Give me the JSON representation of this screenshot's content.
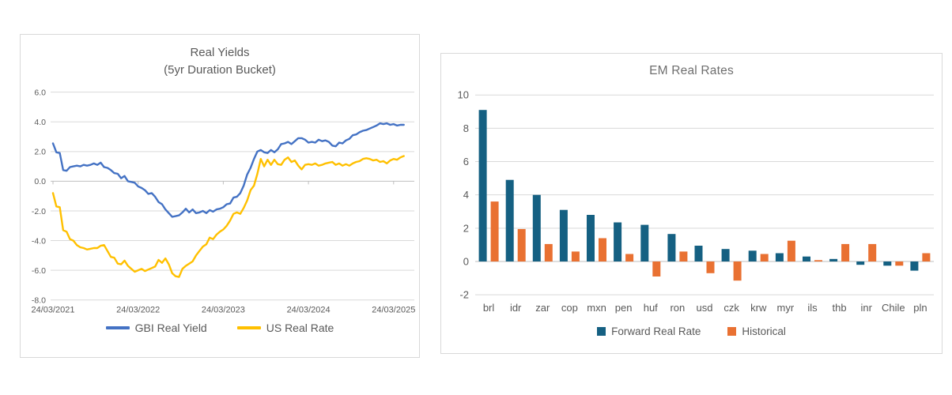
{
  "chart_data": [
    {
      "type": "line",
      "title_lines": [
        "Real Yields",
        "(5yr Duration Bucket)"
      ],
      "xlabel": "",
      "ylabel": "",
      "ylim": [
        -8,
        6
      ],
      "y_ticks": [
        6,
        4,
        2,
        0,
        -2,
        -4,
        -6,
        -8
      ],
      "y_tick_labels": [
        "6.0",
        "4.0",
        "2.0",
        "0.0",
        "-2.0",
        "-4.0",
        "-6.0",
        "-8.0"
      ],
      "x_tick_labels": [
        "24/03/2021",
        "24/03/2022",
        "24/03/2023",
        "24/03/2024",
        "24/03/2025"
      ],
      "x_tick_positions_years": [
        0,
        1,
        2,
        3,
        4
      ],
      "x_range_years": [
        0,
        4.24
      ],
      "grid": true,
      "legend_position": "bottom",
      "axis_color": "#BFBFBF",
      "grid_color": "#D9D9D9",
      "series": [
        {
          "name": "GBI Real Yield",
          "color": "#4472C4",
          "t0": 0,
          "dt": 0.04,
          "values": [
            2.55,
            1.95,
            1.9,
            0.75,
            0.7,
            0.95,
            1.0,
            1.05,
            1.0,
            1.1,
            1.05,
            1.1,
            1.2,
            1.1,
            1.25,
            0.95,
            0.9,
            0.75,
            0.55,
            0.5,
            0.2,
            0.35,
            0.0,
            -0.05,
            -0.1,
            -0.35,
            -0.45,
            -0.6,
            -0.85,
            -0.8,
            -1.05,
            -1.4,
            -1.55,
            -1.9,
            -2.15,
            -2.4,
            -2.35,
            -2.3,
            -2.1,
            -1.85,
            -2.1,
            -1.9,
            -2.15,
            -2.1,
            -2.0,
            -2.15,
            -1.95,
            -2.05,
            -1.9,
            -1.85,
            -1.75,
            -1.55,
            -1.5,
            -1.1,
            -1.05,
            -0.8,
            -0.3,
            0.45,
            0.9,
            1.5,
            2.0,
            2.1,
            1.95,
            1.9,
            2.1,
            1.95,
            2.15,
            2.5,
            2.55,
            2.65,
            2.5,
            2.7,
            2.9,
            2.9,
            2.8,
            2.6,
            2.65,
            2.6,
            2.8,
            2.7,
            2.75,
            2.65,
            2.4,
            2.35,
            2.6,
            2.55,
            2.75,
            2.85,
            3.1,
            3.15,
            3.3,
            3.4,
            3.45,
            3.55,
            3.65,
            3.75,
            3.9,
            3.85,
            3.9,
            3.8,
            3.85,
            3.75,
            3.8,
            3.8
          ]
        },
        {
          "name": "US Real Rate",
          "color": "#FFC000",
          "t0": 0,
          "dt": 0.04,
          "values": [
            -0.8,
            -1.7,
            -1.75,
            -3.3,
            -3.4,
            -3.9,
            -4.0,
            -4.3,
            -4.45,
            -4.5,
            -4.6,
            -4.55,
            -4.5,
            -4.5,
            -4.35,
            -4.3,
            -4.7,
            -5.1,
            -5.15,
            -5.55,
            -5.6,
            -5.35,
            -5.7,
            -5.9,
            -6.1,
            -6.0,
            -5.9,
            -6.05,
            -5.95,
            -5.85,
            -5.75,
            -5.3,
            -5.5,
            -5.2,
            -5.6,
            -6.2,
            -6.4,
            -6.45,
            -5.9,
            -5.7,
            -5.55,
            -5.4,
            -5.0,
            -4.7,
            -4.4,
            -4.25,
            -3.8,
            -3.9,
            -3.6,
            -3.4,
            -3.25,
            -3.0,
            -2.65,
            -2.2,
            -2.1,
            -2.2,
            -1.8,
            -1.3,
            -0.6,
            -0.3,
            0.5,
            1.5,
            1.0,
            1.45,
            1.1,
            1.45,
            1.15,
            1.1,
            1.45,
            1.6,
            1.3,
            1.4,
            1.05,
            0.8,
            1.1,
            1.15,
            1.1,
            1.2,
            1.05,
            1.1,
            1.2,
            1.25,
            1.3,
            1.1,
            1.2,
            1.05,
            1.15,
            1.05,
            1.2,
            1.3,
            1.35,
            1.5,
            1.55,
            1.5,
            1.4,
            1.45,
            1.3,
            1.35,
            1.2,
            1.4,
            1.5,
            1.45,
            1.6,
            1.7
          ]
        }
      ]
    },
    {
      "type": "bar",
      "title": "EM Real Rates",
      "xlabel": "",
      "ylabel": "",
      "ylim": [
        -2,
        10
      ],
      "y_ticks": [
        10,
        8,
        6,
        4,
        2,
        0,
        -2
      ],
      "y_tick_labels": [
        "10",
        "8",
        "6",
        "4",
        "2",
        "0",
        "-2"
      ],
      "categories": [
        "brl",
        "idr",
        "zar",
        "cop",
        "mxn",
        "pen",
        "huf",
        "ron",
        "usd",
        "czk",
        "krw",
        "myr",
        "ils",
        "thb",
        "inr",
        "Chile",
        "pln"
      ],
      "grid": true,
      "legend_position": "bottom",
      "axis_color": "#BFBFBF",
      "grid_color": "#D9D9D9",
      "series": [
        {
          "name": "Forward Real Rate",
          "color": "#156082",
          "values": [
            9.1,
            4.9,
            4.0,
            3.1,
            2.8,
            2.35,
            2.2,
            1.65,
            0.95,
            0.75,
            0.65,
            0.5,
            0.3,
            0.15,
            -0.2,
            -0.25,
            -0.55
          ]
        },
        {
          "name": "Historical",
          "color": "#E97132",
          "values": [
            3.6,
            1.95,
            1.05,
            0.6,
            1.4,
            0.45,
            -0.9,
            0.6,
            -0.7,
            -1.15,
            0.45,
            1.25,
            0.08,
            1.05,
            1.05,
            -0.25,
            0.5
          ]
        }
      ]
    }
  ]
}
